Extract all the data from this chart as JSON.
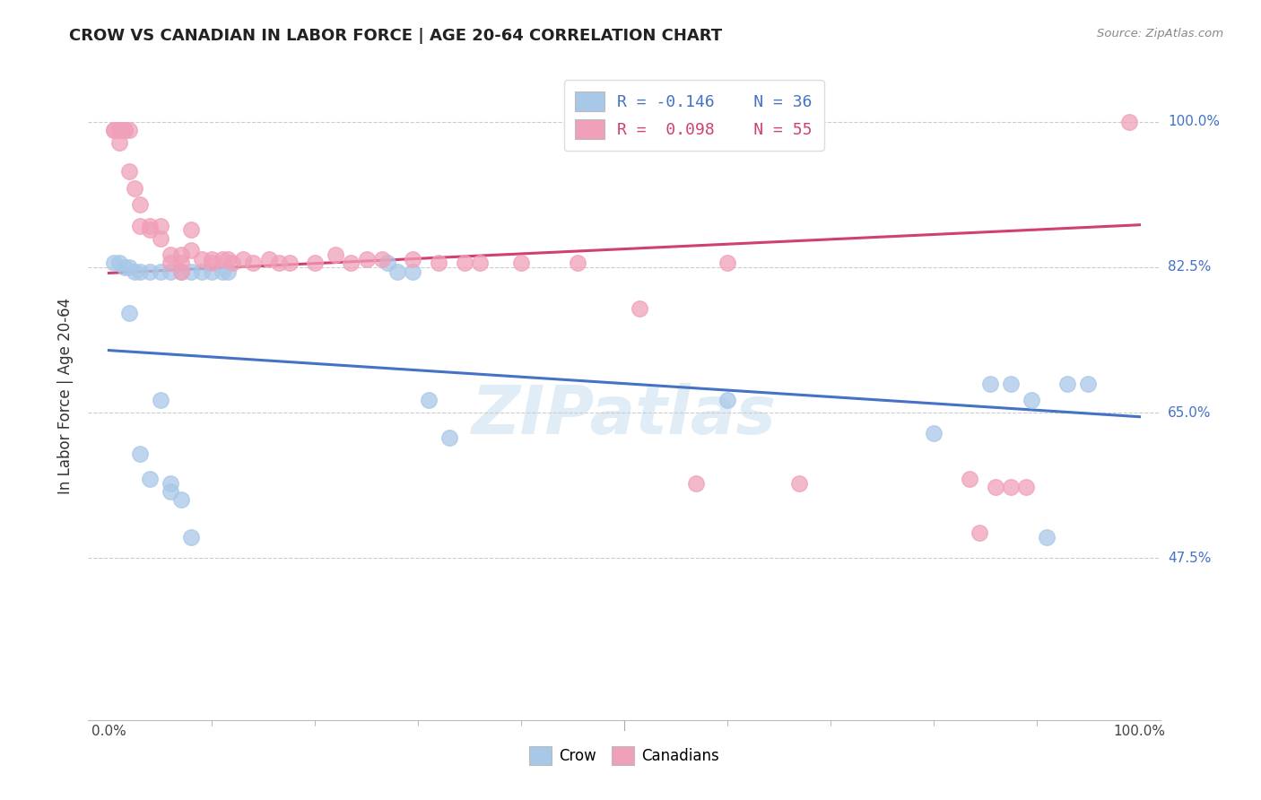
{
  "title": "CROW VS CANADIAN IN LABOR FORCE | AGE 20-64 CORRELATION CHART",
  "source": "Source: ZipAtlas.com",
  "ylabel": "In Labor Force | Age 20-64",
  "xlim": [
    -0.02,
    1.02
  ],
  "ylim": [
    0.28,
    1.06
  ],
  "yticks": [
    0.475,
    0.65,
    0.825,
    1.0
  ],
  "ytick_labels": [
    "47.5%",
    "65.0%",
    "82.5%",
    "100.0%"
  ],
  "xtick_labels": [
    "0.0%",
    "100.0%"
  ],
  "xticks": [
    0.0,
    1.0
  ],
  "crow_R": -0.146,
  "crow_N": 36,
  "canadian_R": 0.098,
  "canadian_N": 55,
  "crow_color": "#a8c8e8",
  "canadian_color": "#f0a0b8",
  "crow_line_color": "#4472c4",
  "canadian_line_color": "#d04070",
  "background_color": "#ffffff",
  "grid_color": "#cccccc",
  "crow_x": [
    0.005,
    0.01,
    0.015,
    0.02,
    0.02,
    0.025,
    0.03,
    0.03,
    0.04,
    0.04,
    0.05,
    0.05,
    0.06,
    0.06,
    0.06,
    0.07,
    0.07,
    0.08,
    0.08,
    0.09,
    0.1,
    0.11,
    0.115,
    0.27,
    0.28,
    0.295,
    0.31,
    0.33,
    0.6,
    0.8,
    0.855,
    0.875,
    0.895,
    0.91,
    0.93,
    0.95
  ],
  "crow_y": [
    0.83,
    0.83,
    0.825,
    0.825,
    0.77,
    0.82,
    0.82,
    0.6,
    0.82,
    0.57,
    0.82,
    0.665,
    0.82,
    0.565,
    0.555,
    0.82,
    0.545,
    0.82,
    0.5,
    0.82,
    0.82,
    0.82,
    0.82,
    0.83,
    0.82,
    0.82,
    0.665,
    0.62,
    0.665,
    0.625,
    0.685,
    0.685,
    0.665,
    0.5,
    0.685,
    0.685
  ],
  "canadian_x": [
    0.005,
    0.005,
    0.01,
    0.01,
    0.01,
    0.015,
    0.015,
    0.02,
    0.02,
    0.025,
    0.03,
    0.03,
    0.04,
    0.04,
    0.05,
    0.05,
    0.06,
    0.06,
    0.07,
    0.07,
    0.07,
    0.08,
    0.08,
    0.09,
    0.1,
    0.1,
    0.11,
    0.115,
    0.12,
    0.13,
    0.14,
    0.155,
    0.165,
    0.175,
    0.2,
    0.22,
    0.235,
    0.25,
    0.265,
    0.295,
    0.32,
    0.345,
    0.36,
    0.4,
    0.455,
    0.515,
    0.57,
    0.6,
    0.67,
    0.835,
    0.845,
    0.86,
    0.875,
    0.89,
    0.99
  ],
  "canadian_y": [
    0.99,
    0.99,
    0.99,
    0.99,
    0.975,
    0.99,
    0.99,
    0.99,
    0.94,
    0.92,
    0.9,
    0.875,
    0.875,
    0.87,
    0.875,
    0.86,
    0.84,
    0.83,
    0.84,
    0.83,
    0.82,
    0.87,
    0.845,
    0.835,
    0.835,
    0.83,
    0.835,
    0.835,
    0.83,
    0.835,
    0.83,
    0.835,
    0.83,
    0.83,
    0.83,
    0.84,
    0.83,
    0.835,
    0.835,
    0.835,
    0.83,
    0.83,
    0.83,
    0.83,
    0.83,
    0.775,
    0.565,
    0.83,
    0.565,
    0.57,
    0.505,
    0.56,
    0.56,
    0.56,
    1.0
  ],
  "crow_trend_x": [
    0.0,
    1.0
  ],
  "crow_trend_y": [
    0.725,
    0.645
  ],
  "canadian_trend_x": [
    0.0,
    1.0
  ],
  "canadian_trend_y": [
    0.818,
    0.876
  ]
}
